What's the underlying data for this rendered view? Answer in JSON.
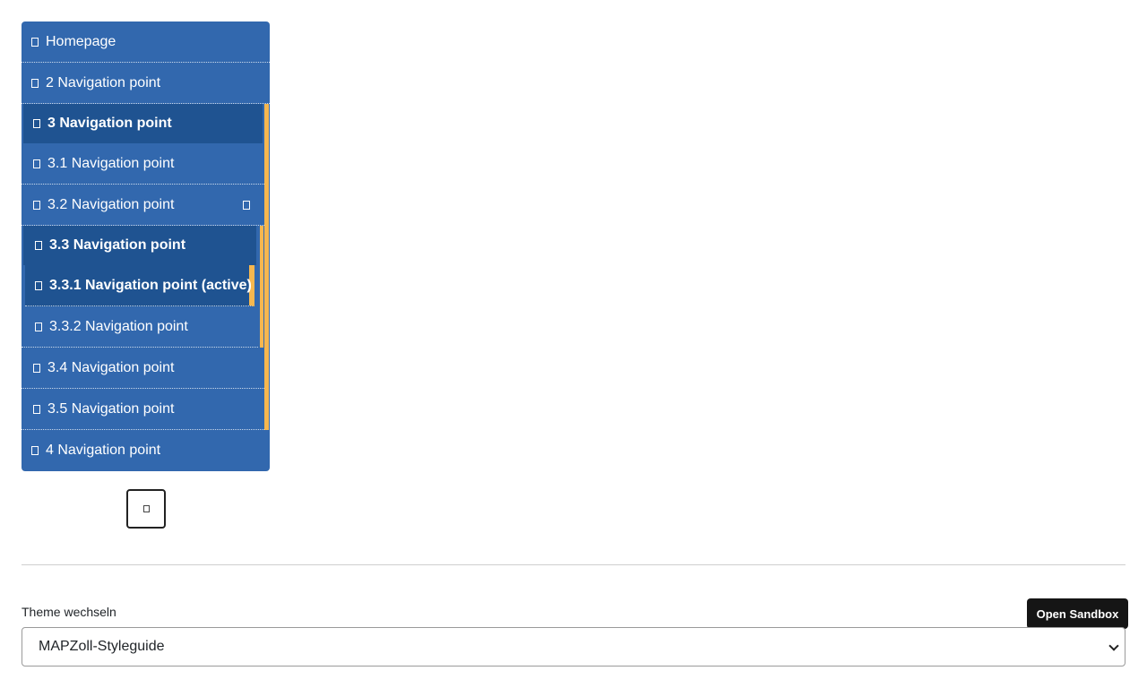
{
  "navigation": {
    "items": [
      {
        "label": "Homepage"
      },
      {
        "label": "2 Navigation point"
      },
      {
        "label": "3 Navigation point"
      },
      {
        "label": "3.1 Navigation point"
      },
      {
        "label": "3.2 Navigation point"
      },
      {
        "label": "3.3 Navigation point"
      },
      {
        "label": "3.3.1 Navigation point (active)"
      },
      {
        "label": "3.3.2 Navigation point"
      },
      {
        "label": "3.4 Navigation point"
      },
      {
        "label": "3.5 Navigation point"
      },
      {
        "label": "4 Navigation point"
      }
    ],
    "accent_color": "#f6b74f",
    "background_color": "#3268ae",
    "active_background_color": "#1f5391"
  },
  "theme": {
    "label": "Theme wechseln",
    "selected": "MAPZoll-Styleguide"
  },
  "sandbox": {
    "button_label": "Open Sandbox"
  }
}
